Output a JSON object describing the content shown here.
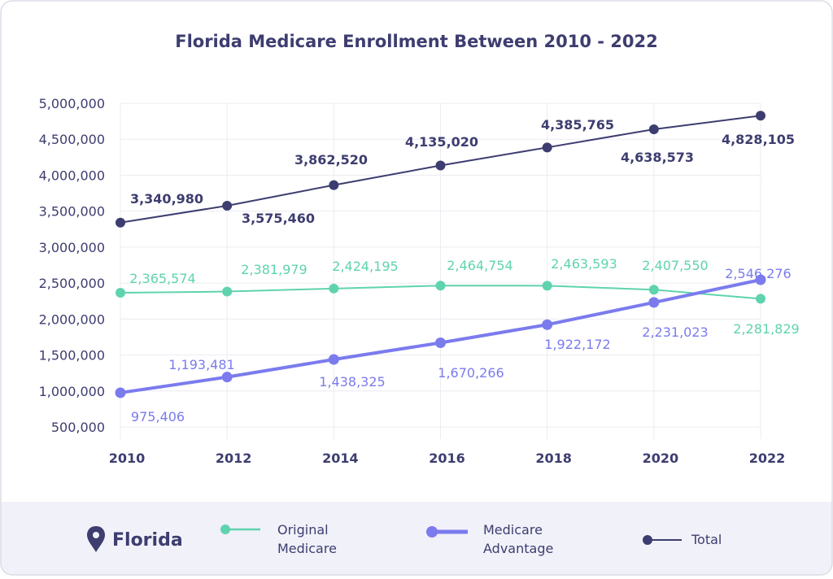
{
  "chart_data": {
    "type": "line",
    "title": "Florida Medicare Enrollment Between 2010 - 2022",
    "x": [
      "2010",
      "2012",
      "2014",
      "2016",
      "2018",
      "2020",
      "2022"
    ],
    "yticks": [
      "5,000,000",
      "4,500,000",
      "4,000,000",
      "3,500,000",
      "3,000,000",
      "2,500,000",
      "2,000,000",
      "1,500,000",
      "1,000,000",
      "500,000"
    ],
    "ylim": [
      500000,
      5000000
    ],
    "grid": true,
    "legend_position": "bottom",
    "series": [
      {
        "name": "Total",
        "color": "#3d3d70",
        "values": [
          3340980,
          3575460,
          3862520,
          4135020,
          4385765,
          4638573,
          4828105
        ],
        "labels": [
          "3,340,980",
          "3,575,460",
          "3,862,520",
          "4,135,020",
          "4,385,765",
          "4,638,573",
          "4,828,105"
        ]
      },
      {
        "name": "Original Medicare",
        "color": "#5fd3ae",
        "values": [
          2365574,
          2381979,
          2424195,
          2464754,
          2463593,
          2407550,
          2281829
        ],
        "labels": [
          "2,365,574",
          "2,381,979",
          "2,424,195",
          "2,464,754",
          "2,463,593",
          "2,407,550",
          "2,281,829"
        ]
      },
      {
        "name": "Medicare Advantage",
        "color": "#7b7bee",
        "values": [
          975406,
          1193481,
          1438325,
          1670266,
          1922172,
          2231023,
          2546276
        ],
        "labels": [
          "975,406",
          "1,193,481",
          "1,438,325",
          "1,670,266",
          "1,922,172",
          "2,231,023",
          "2,546,276"
        ]
      }
    ]
  },
  "legend": {
    "location": "Florida",
    "location_icon": "map-pin-icon",
    "items": [
      {
        "line1": "Original",
        "line2": "Medicare",
        "color": "#5fd3ae"
      },
      {
        "line1": "Medicare",
        "line2": "Advantage",
        "color": "#7b7bee"
      },
      {
        "line1": "Total",
        "line2": "",
        "color": "#3d3d70"
      }
    ]
  }
}
